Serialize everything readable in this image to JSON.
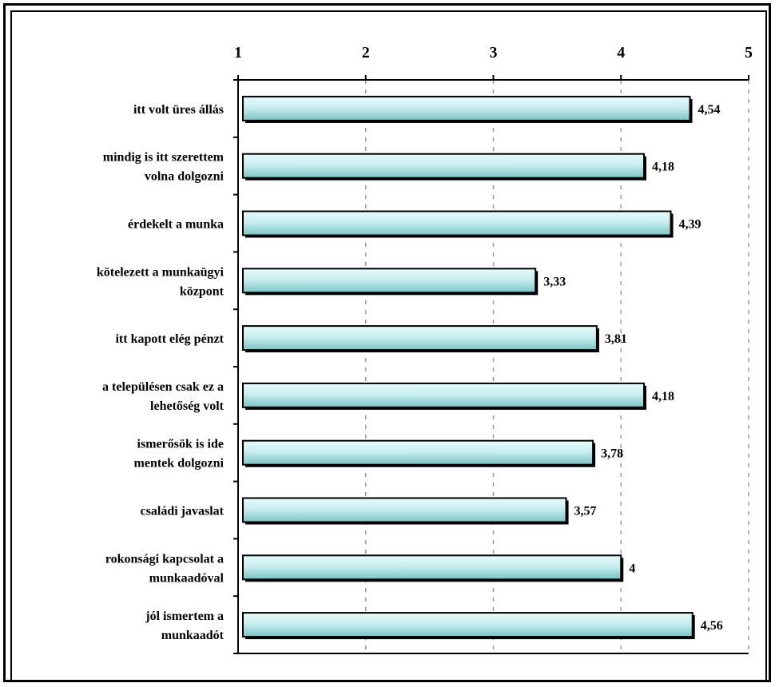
{
  "chart_data": {
    "type": "bar",
    "orientation": "horizontal",
    "title": "",
    "xlabel": "",
    "ylabel": "",
    "xlim": [
      1,
      5
    ],
    "x_ticks": [
      "1",
      "2",
      "3",
      "4",
      "5"
    ],
    "x_axis_position": "top",
    "grid": "vertical-dashed",
    "categories": [
      [
        "itt volt üres állás"
      ],
      [
        "mindig is itt szerettem",
        "volna dolgozni"
      ],
      [
        "érdekelt a munka"
      ],
      [
        "kötelezett a munkaügyi",
        "központ"
      ],
      [
        "itt kapott elég pénzt"
      ],
      [
        "a településen csak ez a",
        "lehetőség volt"
      ],
      [
        "ismerősök is ide",
        "mentek dolgozni"
      ],
      [
        "családi javaslat"
      ],
      [
        "rokonsági kapcsolat a",
        "munkaadóval"
      ],
      [
        "jól ismertem a",
        "munkaadót"
      ]
    ],
    "values": [
      4.54,
      4.18,
      4.39,
      3.33,
      3.81,
      4.18,
      3.78,
      3.57,
      4.0,
      4.56
    ],
    "value_labels": [
      "4,54",
      "4,18",
      "4,39",
      "3,33",
      "3,81",
      "4,18",
      "3,78",
      "3,57",
      "4",
      "4,56"
    ],
    "colors": {
      "bar_fill_light": "#e6fbfb",
      "bar_fill_dark": "#7cc4c4",
      "bar_stroke": "#000000",
      "grid": "#9a9a9a"
    }
  }
}
